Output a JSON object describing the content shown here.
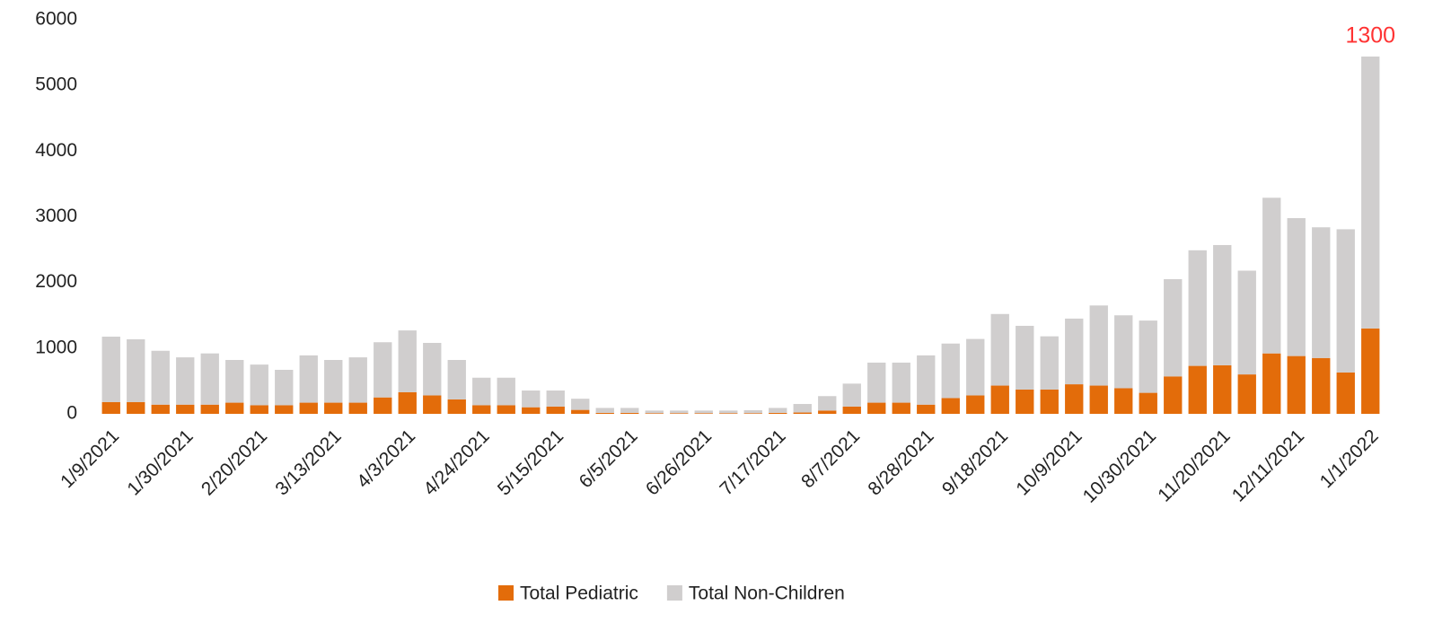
{
  "chart_data": {
    "type": "stacked_bar",
    "categories": [
      "1/9/2021",
      null,
      null,
      "1/30/2021",
      null,
      null,
      "2/20/2021",
      null,
      null,
      "3/13/2021",
      null,
      null,
      "4/3/2021",
      null,
      null,
      "4/24/2021",
      null,
      null,
      "5/15/2021",
      null,
      null,
      "6/5/2021",
      null,
      null,
      "6/26/2021",
      null,
      null,
      "7/17/2021",
      null,
      null,
      "8/7/2021",
      null,
      null,
      "8/28/2021",
      null,
      null,
      "9/18/2021",
      null,
      null,
      "10/9/2021",
      null,
      null,
      "10/30/2021",
      null,
      null,
      "11/20/2021",
      null,
      null,
      "12/11/2021",
      null,
      null,
      "1/1/2022"
    ],
    "series": [
      {
        "name": "Total Pediatric",
        "color": "#e36c0a",
        "values": [
          180,
          180,
          140,
          140,
          140,
          170,
          130,
          130,
          170,
          170,
          170,
          250,
          330,
          280,
          220,
          130,
          130,
          100,
          110,
          60,
          15,
          15,
          10,
          10,
          10,
          10,
          10,
          15,
          20,
          50,
          110,
          170,
          170,
          140,
          240,
          280,
          430,
          370,
          370,
          450,
          430,
          390,
          320,
          570,
          730,
          740,
          600,
          920,
          880,
          850,
          630,
          1300
        ]
      },
      {
        "name": "Total Non-Children",
        "color": "#d0cece",
        "values": [
          995,
          955,
          820,
          720,
          780,
          650,
          620,
          540,
          720,
          650,
          690,
          840,
          940,
          800,
          600,
          420,
          420,
          255,
          245,
          170,
          75,
          75,
          40,
          40,
          40,
          40,
          45,
          75,
          130,
          220,
          350,
          610,
          610,
          750,
          830,
          860,
          1090,
          970,
          810,
          1000,
          1220,
          1110,
          1100,
          1480,
          1760,
          1830,
          1580,
          2370,
          2100,
          1990,
          2180,
          4140
        ]
      }
    ],
    "labeled_point": {
      "series": 0,
      "index": 51,
      "color": "#ff3333"
    },
    "ylim": [
      0,
      6000
    ],
    "yticks": [
      0,
      1000,
      2000,
      3000,
      4000,
      5000,
      6000
    ],
    "grid": false,
    "legend": "bottom"
  }
}
